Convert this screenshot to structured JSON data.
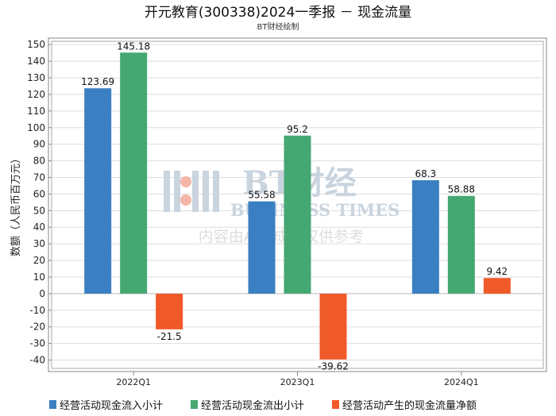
{
  "chart_data": {
    "type": "bar",
    "title": "开元教育(300338)2024一季报 － 现金流量",
    "subtitle": "BT财经绘制",
    "ylabel": "数额（人民币百万元）",
    "xlabel": "",
    "ylim": [
      -45,
      152
    ],
    "yticks": [
      150,
      140,
      130,
      120,
      110,
      100,
      90,
      80,
      70,
      60,
      50,
      40,
      30,
      20,
      10,
      0,
      -10,
      -20,
      -30,
      -40
    ],
    "categories": [
      "2022Q1",
      "2023Q1",
      "2024Q1"
    ],
    "series": [
      {
        "name": "经营活动现金流入小计",
        "color": "#3a7fc1",
        "values": [
          123.69,
          55.58,
          68.3
        ],
        "labels": [
          "123.69",
          "55.58",
          "68.3"
        ]
      },
      {
        "name": "经营活动现金流出小计",
        "color": "#45a873",
        "values": [
          145.18,
          95.2,
          58.88
        ],
        "labels": [
          "145.18",
          "95.2",
          "58.88"
        ]
      },
      {
        "name": "经营活动产生的现金流量净额",
        "color": "#f05a28",
        "values": [
          -21.5,
          -39.62,
          9.42
        ],
        "labels": [
          "-21.5",
          "-39.62",
          "9.42"
        ]
      }
    ],
    "legend_position": "bottom"
  },
  "watermark": {
    "brand": "BT财经",
    "english": "BUSINESS TIMES",
    "notice": "内容由AI生成，仅供参考"
  }
}
